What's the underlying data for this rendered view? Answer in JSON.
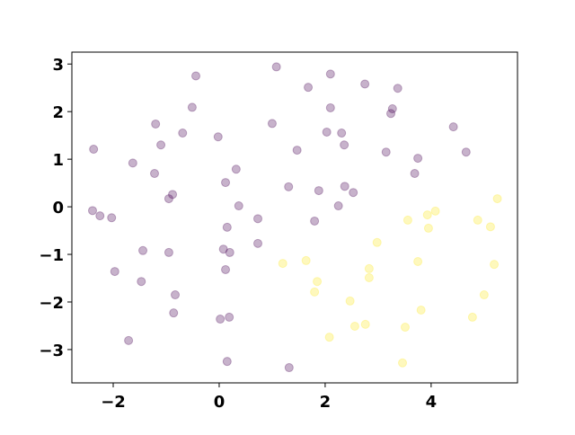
{
  "chart_data": {
    "type": "scatter",
    "xlim": [
      -2.78,
      5.63
    ],
    "ylim": [
      -3.7,
      3.25
    ],
    "xticks": [
      -2,
      0,
      2,
      4
    ],
    "yticks": [
      -3,
      -2,
      -1,
      0,
      1,
      2,
      3
    ],
    "series": [
      {
        "color": "#440154",
        "x": [
          -2.37,
          -2.39,
          -2.25,
          -2.03,
          -1.97,
          -1.63,
          -1.71,
          -1.44,
          -1.47,
          -1.2,
          -1.22,
          -1.1,
          -0.95,
          -0.88,
          -0.95,
          -0.83,
          -0.86,
          -0.69,
          -0.51,
          -0.44,
          -0.02,
          0.12,
          0.32,
          0.37,
          0.15,
          0.08,
          0.2,
          0.12,
          0.02,
          0.19,
          0.15,
          0.73,
          0.73,
          1.0,
          1.08,
          1.32,
          1.31,
          1.47,
          1.68,
          1.8,
          1.88,
          2.03,
          2.1,
          2.1,
          2.25,
          2.31,
          2.36,
          2.37,
          2.53,
          2.75,
          3.15,
          3.24,
          3.27,
          3.37,
          3.69,
          3.75,
          4.42,
          4.66
        ],
        "values": [
          1.21,
          -0.08,
          -0.19,
          -0.23,
          -1.36,
          0.92,
          -2.81,
          -0.92,
          -1.57,
          1.74,
          0.7,
          1.3,
          0.17,
          0.26,
          -0.96,
          -1.85,
          -2.23,
          1.55,
          2.09,
          2.75,
          1.47,
          0.51,
          0.79,
          0.02,
          -0.43,
          -0.89,
          -0.96,
          -1.32,
          -2.36,
          -2.32,
          -3.25,
          -0.25,
          -0.77,
          1.75,
          2.94,
          -3.38,
          0.42,
          1.19,
          2.51,
          -0.3,
          0.34,
          1.57,
          2.08,
          2.79,
          0.02,
          1.55,
          1.3,
          0.43,
          0.3,
          2.58,
          1.15,
          1.96,
          2.06,
          2.49,
          0.7,
          1.02,
          1.68,
          1.15
        ]
      },
      {
        "color": "#fde725",
        "x": [
          1.2,
          1.64,
          1.85,
          1.8,
          2.08,
          2.47,
          2.56,
          2.76,
          2.83,
          2.83,
          2.98,
          3.56,
          3.51,
          3.46,
          3.75,
          3.81,
          3.93,
          3.95,
          4.08,
          4.78,
          4.88,
          5.0,
          5.12,
          5.19,
          5.25
        ],
        "values": [
          -1.19,
          -1.13,
          -1.57,
          -1.79,
          -2.74,
          -1.98,
          -2.51,
          -2.47,
          -1.3,
          -1.49,
          -0.75,
          -0.28,
          -2.53,
          -3.28,
          -1.15,
          -2.17,
          -0.17,
          -0.45,
          -0.09,
          -2.32,
          -0.28,
          -1.85,
          -0.42,
          -1.21,
          0.17
        ]
      }
    ]
  }
}
